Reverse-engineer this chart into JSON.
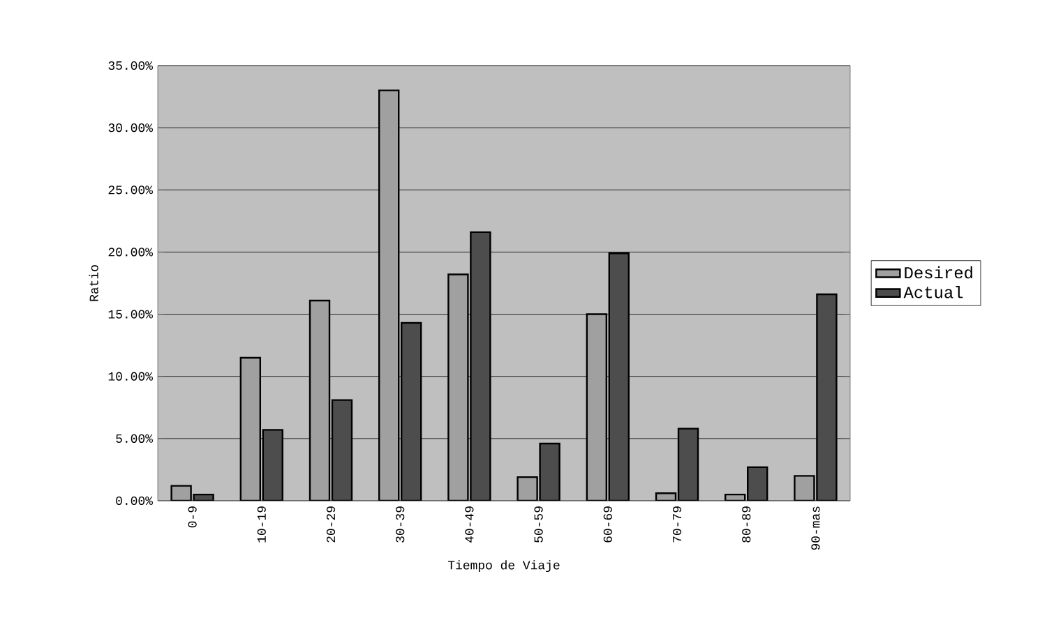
{
  "chart_data": {
    "type": "bar",
    "xlabel": "Tiempo de Viaje",
    "ylabel": "Ratio",
    "categories": [
      "0-9",
      "10-19",
      "20-29",
      "30-39",
      "40-49",
      "50-59",
      "60-69",
      "70-79",
      "80-89",
      "90-mas"
    ],
    "series": [
      {
        "name": "Desired",
        "color": "#a0a0a0",
        "values": [
          1.2,
          11.5,
          16.1,
          33.0,
          18.2,
          1.9,
          15.0,
          0.6,
          0.5,
          2.0
        ]
      },
      {
        "name": "Actual",
        "color": "#4d4d4d",
        "values": [
          0.5,
          5.7,
          8.1,
          14.3,
          21.6,
          4.6,
          19.9,
          5.8,
          2.7,
          16.6
        ]
      }
    ],
    "ylim": [
      0,
      35
    ],
    "yticks": [
      {
        "value": 0,
        "label": "0.00%"
      },
      {
        "value": 5,
        "label": "5.00%"
      },
      {
        "value": 10,
        "label": "10.00%"
      },
      {
        "value": 15,
        "label": "15.00%"
      },
      {
        "value": 20,
        "label": "20.00%"
      },
      {
        "value": 25,
        "label": "25.00%"
      },
      {
        "value": 30,
        "label": "30.00%"
      },
      {
        "value": 35,
        "label": "35.00%"
      }
    ],
    "grid": "y",
    "legend": "right"
  }
}
